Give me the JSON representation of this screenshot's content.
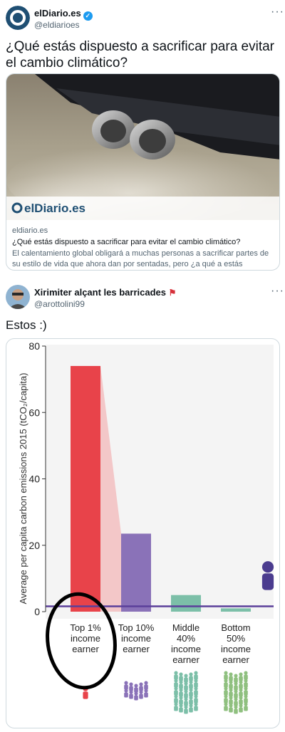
{
  "tweet1": {
    "name": "elDiario.es",
    "handle": "@eldiarioes",
    "text": "¿Qué estás dispuesto a sacrificar para evitar el cambio climático?",
    "verified_color": "#1d9bf0",
    "card": {
      "logo_text": "elDiario.es",
      "domain": "eldiario.es",
      "title": "¿Qué estás dispuesto a sacrificar para evitar el cambio climático?",
      "description": "El calentamiento global obligará a muchas personas a sacrificar partes de su estilo de vida que ahora dan por sentadas, pero ¿a qué a estás dispuesto a ..."
    }
  },
  "tweet2": {
    "name": "Xirimiter alçant les barricades",
    "handle": "@arottolini99",
    "text": "Estos :)"
  },
  "chart_data": {
    "type": "bar",
    "categories": [
      "Top 1%\nincome\nearner",
      "Top 10%\nincome\nearner",
      "Middle\n40%\nincome\nearner",
      "Bottom\n50%\nincome\nearner"
    ],
    "values": [
      74,
      23.5,
      5,
      1
    ],
    "colors": [
      "#e8434a",
      "#8a72b8",
      "#7cbfa8",
      "#7cbfa8"
    ],
    "ylabel": "Average per capita carbon emissions 2015 (tCO₂/capita)",
    "yticks": [
      0,
      20,
      40,
      60,
      80
    ],
    "ylim": [
      0,
      80
    ],
    "reference_line": 1.6,
    "grid": false
  }
}
